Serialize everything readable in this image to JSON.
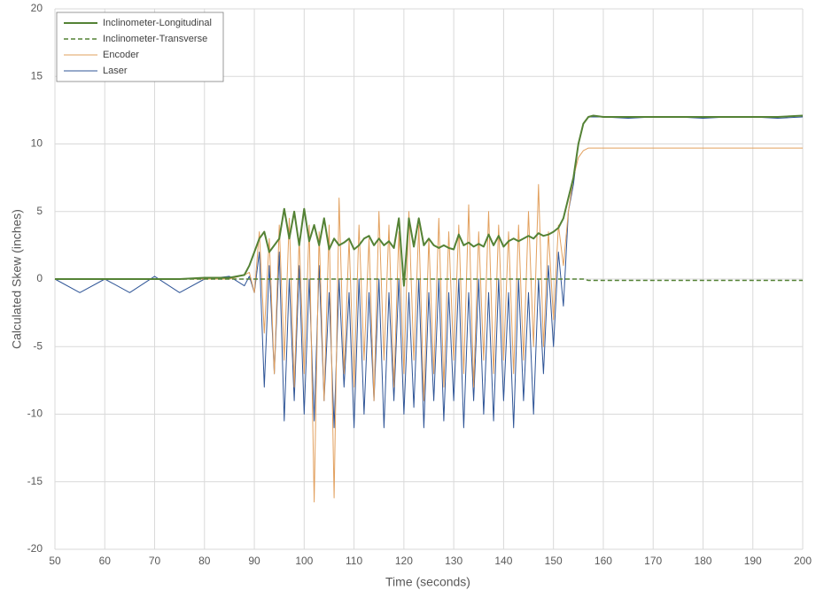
{
  "chart_data": {
    "type": "line",
    "x_label": "Time (seconds)",
    "y_label": "Calculated Skew (inches)",
    "x": [
      50,
      55,
      60,
      65,
      70,
      75,
      80,
      85,
      88,
      89,
      90,
      91,
      92,
      93,
      94,
      95,
      96,
      97,
      98,
      99,
      100,
      101,
      102,
      103,
      104,
      105,
      106,
      107,
      108,
      109,
      110,
      111,
      112,
      113,
      114,
      115,
      116,
      117,
      118,
      119,
      120,
      121,
      122,
      123,
      124,
      125,
      126,
      127,
      128,
      129,
      130,
      131,
      132,
      133,
      134,
      135,
      136,
      137,
      138,
      139,
      140,
      141,
      142,
      143,
      144,
      145,
      146,
      147,
      148,
      149,
      150,
      151,
      152,
      153,
      154,
      155,
      156,
      157,
      158,
      160,
      165,
      170,
      175,
      180,
      185,
      190,
      195,
      200
    ],
    "series": [
      {
        "name": "Inclinometer-Longitudinal",
        "color": "#548235",
        "dash": false,
        "width": 2,
        "values": [
          0,
          0,
          0,
          0,
          0,
          0,
          0.1,
          0.1,
          0.3,
          1,
          2,
          3,
          3.5,
          2,
          2.5,
          3,
          5.2,
          3,
          5,
          2.5,
          5.2,
          2.8,
          4,
          2.5,
          4.5,
          2.2,
          3,
          2.5,
          2.7,
          3,
          2.2,
          2.5,
          3,
          3.2,
          2.5,
          3,
          2.5,
          2.8,
          2.3,
          4.5,
          -0.5,
          4.5,
          2.4,
          4.5,
          2.5,
          3,
          2.5,
          2.3,
          2.5,
          2.3,
          2.2,
          3.3,
          2.5,
          2.7,
          2.4,
          2.6,
          2.4,
          3.3,
          2.5,
          3.2,
          2.4,
          2.8,
          3,
          2.8,
          3,
          3.2,
          3,
          3.4,
          3.2,
          3.3,
          3.5,
          3.8,
          4.5,
          6,
          7.5,
          10,
          11.5,
          12,
          12.1,
          12,
          12,
          12,
          12,
          12,
          12,
          12,
          12,
          12.1
        ]
      },
      {
        "name": "Inclinometer-Transverse",
        "color": "#548235",
        "dash": true,
        "width": 1.5,
        "values": [
          0,
          0,
          0,
          0,
          0,
          0,
          0,
          0,
          0,
          0,
          0,
          0,
          0,
          0,
          0,
          0,
          0,
          0,
          0,
          0,
          0,
          0,
          0,
          0,
          0,
          0,
          0,
          0,
          0,
          0,
          0,
          0,
          0,
          0,
          0,
          0,
          0,
          0,
          0,
          0,
          0,
          0,
          0,
          0,
          0,
          0,
          0,
          0,
          0,
          0,
          0,
          0,
          0,
          0,
          0,
          0,
          0,
          0,
          0,
          0,
          0,
          0,
          0,
          0,
          0,
          0,
          0,
          0,
          0,
          0,
          0,
          0,
          0,
          0,
          0,
          0,
          0,
          -0.1,
          -0.1,
          -0.1,
          -0.1,
          -0.1,
          -0.1,
          -0.1,
          -0.1,
          -0.1,
          -0.1,
          -0.1
        ]
      },
      {
        "name": "Encoder",
        "color": "#e2a05e",
        "dash": false,
        "width": 1,
        "values": [
          0,
          0,
          0,
          0,
          0,
          0,
          0,
          0,
          0.3,
          0.5,
          -1,
          3.5,
          -4,
          3,
          -7,
          4,
          -6,
          4.5,
          -8,
          3,
          -7,
          4,
          -16.5,
          3.5,
          -9,
          4,
          -16.2,
          6,
          -7,
          3,
          -8,
          4,
          -6,
          3,
          -9,
          5,
          -6,
          4,
          -8,
          3.5,
          -7,
          5,
          -6,
          4,
          -9,
          3,
          -7,
          4.5,
          -8,
          3.5,
          -6,
          4,
          -7,
          5.5,
          -8,
          3.5,
          -6,
          5,
          -7,
          4,
          -6,
          3.5,
          -7,
          4,
          -6,
          5,
          -5,
          7,
          -5,
          3.5,
          -3,
          4,
          1,
          5,
          7.5,
          9,
          9.5,
          9.7,
          9.7,
          9.7,
          9.7,
          9.7,
          9.7,
          9.7,
          9.7,
          9.7,
          9.7,
          9.7
        ]
      },
      {
        "name": "Laser",
        "color": "#2f5597",
        "dash": false,
        "width": 1,
        "values": [
          0,
          -1,
          0,
          -1,
          0.2,
          -1,
          0,
          0.2,
          -0.5,
          0.2,
          -1,
          2,
          -8,
          1,
          -7,
          2,
          -10.5,
          0,
          -9,
          1,
          -10,
          0,
          -10.5,
          1,
          -9,
          -1,
          -11,
          0,
          -8,
          -1,
          -11,
          0,
          -10,
          -1,
          -9,
          0,
          -11,
          -1,
          -9,
          0,
          -10,
          -1,
          -9.5,
          0,
          -11,
          -1,
          -9,
          0,
          -10.5,
          -1,
          -9,
          0,
          -11,
          -1,
          -9,
          0,
          -10,
          -1,
          -10.5,
          0,
          -9,
          -1,
          -11,
          0,
          -9,
          -1,
          -10,
          0,
          -7,
          1,
          -5,
          2,
          -2,
          5,
          7,
          10,
          11.5,
          12,
          12,
          12,
          11.9,
          12,
          12,
          11.9,
          12,
          12,
          11.9,
          12
        ]
      }
    ],
    "xlim": [
      50,
      200
    ],
    "xticks": [
      50,
      60,
      70,
      80,
      90,
      100,
      110,
      120,
      130,
      140,
      150,
      160,
      170,
      180,
      190,
      200
    ],
    "ylim": [
      -20,
      20
    ],
    "yticks": [
      -20,
      -15,
      -10,
      -5,
      0,
      5,
      10,
      15,
      20
    ],
    "grid": true,
    "legend": "top-left"
  }
}
